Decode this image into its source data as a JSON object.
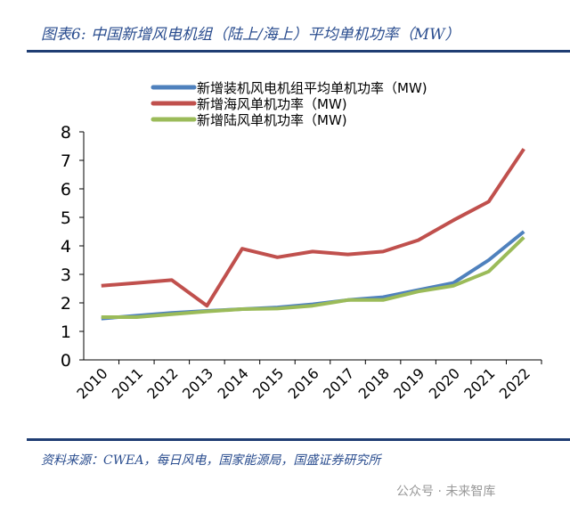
{
  "header": {
    "title": "图表6:  中国新增风电机组（陆上/海上）平均单机功率（MW）"
  },
  "footer": {
    "source": "资料来源：CWEA，每日风电，国家能源局，国盛证券研究所",
    "watermark": "公众号 · 未来智库"
  },
  "chart_data": {
    "type": "line",
    "categories": [
      "2010",
      "2011",
      "2012",
      "2013",
      "2014",
      "2015",
      "2016",
      "2017",
      "2018",
      "2019",
      "2020",
      "2021",
      "2022"
    ],
    "ylim": [
      0,
      8
    ],
    "yticks": [
      "0",
      "1",
      "2",
      "3",
      "4",
      "5",
      "6",
      "7",
      "8"
    ],
    "grid": false,
    "legend": "top",
    "series": [
      {
        "name": "新增装机风电机组平均单机功率（MW)",
        "color": "#4f81bd",
        "values": [
          1.45,
          1.55,
          1.65,
          1.72,
          1.78,
          1.84,
          1.95,
          2.1,
          2.2,
          2.45,
          2.7,
          3.5,
          4.5
        ]
      },
      {
        "name": "新增海风单机功率（MW)",
        "color": "#c0504d",
        "values": [
          2.6,
          2.7,
          2.8,
          1.9,
          3.9,
          3.6,
          3.8,
          3.7,
          3.8,
          4.2,
          4.9,
          5.55,
          7.4
        ]
      },
      {
        "name": "新增陆风单机功率（MW)",
        "color": "#9bbb59",
        "values": [
          1.5,
          1.5,
          1.6,
          1.7,
          1.78,
          1.8,
          1.9,
          2.1,
          2.1,
          2.4,
          2.6,
          3.1,
          4.3
        ]
      }
    ]
  }
}
